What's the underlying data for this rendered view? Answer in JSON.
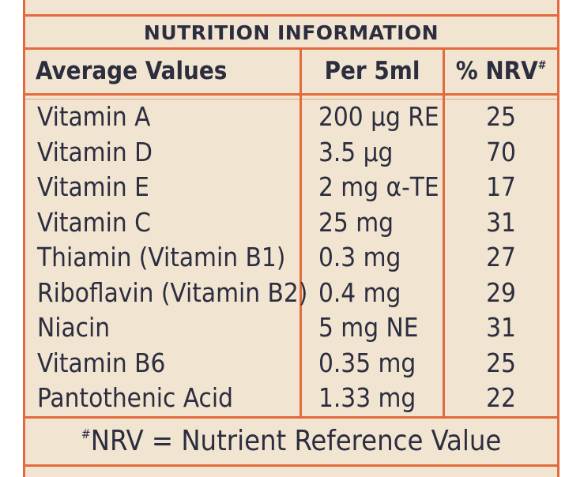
{
  "title": "NUTRITION INFORMATION",
  "headers": {
    "name": "Average Values",
    "per": "Per 5ml",
    "nrv": "% NRV",
    "nrv_mark": "#"
  },
  "rows": [
    {
      "name": "Vitamin A",
      "per": "200 µg RE",
      "nrv": "25"
    },
    {
      "name": "Vitamin D",
      "per": "3.5 µg",
      "nrv": "70"
    },
    {
      "name": "Vitamin E",
      "per": "2 mg α-TE",
      "nrv": "17"
    },
    {
      "name": "Vitamin C",
      "per": "25 mg",
      "nrv": "31"
    },
    {
      "name": "Thiamin (Vitamin B1)",
      "per": "0.3 mg",
      "nrv": "27"
    },
    {
      "name": "Riboflavin (Vitamin B2)",
      "per": "0.4 mg",
      "nrv": "29"
    },
    {
      "name": "Niacin",
      "per": "5 mg NE",
      "nrv": "31"
    },
    {
      "name": "Vitamin B6",
      "per": "0.35 mg",
      "nrv": "25"
    },
    {
      "name": "Pantothenic Acid",
      "per": "1.33 mg",
      "nrv": "22"
    }
  ],
  "footer": {
    "mark": "#",
    "text": "NRV = Nutrient Reference Value"
  },
  "colors": {
    "border": "#e36a3c",
    "background": "#f1e5d1",
    "text": "#2c2d3f"
  }
}
